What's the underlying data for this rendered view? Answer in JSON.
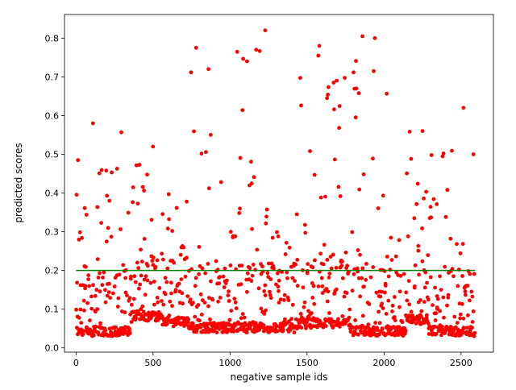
{
  "chart_data": {
    "type": "scatter",
    "title": "",
    "xlabel": "negative sample ids",
    "ylabel": "predicted scores",
    "xlim": [
      -75,
      2710
    ],
    "ylim": [
      -0.011,
      0.861
    ],
    "grid": false,
    "legend": "none",
    "n_points": 2590,
    "x_ticks": [
      0,
      500,
      1000,
      1500,
      2000,
      2500
    ],
    "x_tick_labels": [
      "0",
      "500",
      "1000",
      "1500",
      "2000",
      "2500"
    ],
    "y_ticks": [
      0.0,
      0.1,
      0.2,
      0.3,
      0.4,
      0.5,
      0.6,
      0.7,
      0.8
    ],
    "y_tick_labels": [
      "0.0",
      "0.1",
      "0.2",
      "0.3",
      "0.4",
      "0.5",
      "0.6",
      "0.7",
      "0.8"
    ],
    "threshold_line": {
      "y": 0.2,
      "x_start": 0,
      "x_end": 2590,
      "color": "#008000"
    },
    "point_color": "#ff0000",
    "clusters": [
      {
        "x_start": 0,
        "x_end": 360,
        "floor": 0.03,
        "ceiling": 0.58
      },
      {
        "x_start": 360,
        "x_end": 560,
        "floor": 0.07,
        "ceiling": 0.52
      },
      {
        "x_start": 560,
        "x_end": 730,
        "floor": 0.055,
        "ceiling": 0.41
      },
      {
        "x_start": 730,
        "x_end": 1010,
        "floor": 0.04,
        "ceiling": 0.78
      },
      {
        "x_start": 1010,
        "x_end": 1230,
        "floor": 0.04,
        "ceiling": 0.82
      },
      {
        "x_start": 1230,
        "x_end": 1420,
        "floor": 0.04,
        "ceiling": 0.38
      },
      {
        "x_start": 1420,
        "x_end": 1780,
        "floor": 0.05,
        "ceiling": 0.78
      },
      {
        "x_start": 1780,
        "x_end": 2140,
        "floor": 0.03,
        "ceiling": 0.8
      },
      {
        "x_start": 2140,
        "x_end": 2290,
        "floor": 0.06,
        "ceiling": 0.56
      },
      {
        "x_start": 2290,
        "x_end": 2590,
        "floor": 0.03,
        "ceiling": 0.62
      }
    ],
    "highlighted_points": [
      {
        "x": 1228,
        "y": 0.82
      },
      {
        "x": 1860,
        "y": 0.805
      },
      {
        "x": 1940,
        "y": 0.8
      },
      {
        "x": 780,
        "y": 0.775
      },
      {
        "x": 1580,
        "y": 0.78
      },
      {
        "x": 1170,
        "y": 0.77
      },
      {
        "x": 1110,
        "y": 0.74
      },
      {
        "x": 860,
        "y": 0.72
      },
      {
        "x": 1820,
        "y": 0.67
      },
      {
        "x": 2515,
        "y": 0.62
      },
      {
        "x": 110,
        "y": 0.58
      },
      {
        "x": 2250,
        "y": 0.56
      },
      {
        "x": 500,
        "y": 0.52
      },
      {
        "x": 2580,
        "y": 0.5
      }
    ]
  }
}
